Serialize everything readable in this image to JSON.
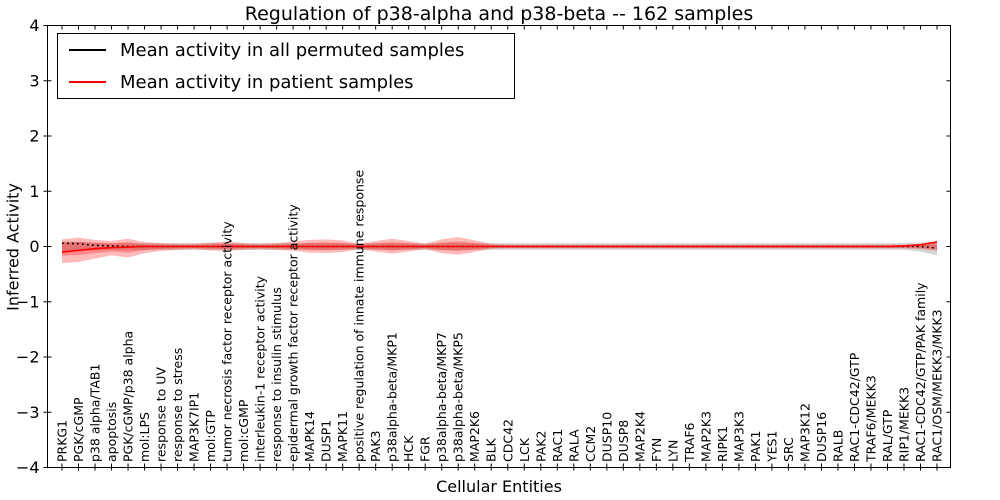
{
  "chart_data": {
    "type": "line",
    "title": "Regulation of p38-alpha and p38-beta -- 162 samples",
    "xlabel": "Cellular Entities",
    "ylabel": "Inferred Activity",
    "ylim": [
      -4,
      4
    ],
    "yticks": [
      -4,
      -3,
      -2,
      -1,
      0,
      1,
      2,
      3,
      4
    ],
    "grid": false,
    "legend_position": "upper left",
    "categories": [
      "PRKG1",
      "PGK/cGMP",
      "p38 alpha/TAB1",
      "apoptosis",
      "PGK/cGMP/p38 alpha",
      "mol:LPS",
      "response to UV",
      "response to stress",
      "MAP3K7IP1",
      "mol:GTP",
      "tumor necrosis factor receptor activity",
      "mol:cGMP",
      "interleukin-1 receptor activity",
      "response to insulin stimulus",
      "epidermal growth factor receptor activity",
      "MAPK14",
      "DUSP1",
      "MAPK11",
      "positive regulation of innate immune response",
      "PAK3",
      "p38alpha-beta/MKP1",
      "HCK",
      "FGR",
      "p38alpha-beta/MKP7",
      "p38alpha-beta/MKP5",
      "MAP2K6",
      "BLK",
      "CDC42",
      "LCK",
      "PAK2",
      "RAC1",
      "RALA",
      "CCM2",
      "DUSP10",
      "DUSP8",
      "MAP2K4",
      "FYN",
      "LYN",
      "TRAF6",
      "MAP2K3",
      "RIPK1",
      "MAP3K3",
      "PAK1",
      "YES1",
      "SRC",
      "MAP3K12",
      "DUSP16",
      "RALB",
      "RAC1-CDC42/GTP",
      "TRAF6/MEKK3",
      "RAL/GTP",
      "RIP1/MEKK3",
      "RAC1-CDC42/GTP/PAK family",
      "RAC1/OSM/MEKK3/MKK3"
    ],
    "series": [
      {
        "id": "mean-permuted",
        "name": "Mean activity in all permuted samples",
        "color": "#000000",
        "style": "dotted",
        "values": [
          0.06,
          0.05,
          0.02,
          0.01,
          0,
          0,
          0,
          0,
          0,
          0,
          0,
          0,
          0,
          0,
          0,
          0,
          0,
          0,
          0,
          0,
          0,
          0,
          0,
          0,
          0,
          0,
          0,
          0,
          0,
          0,
          0,
          0,
          0,
          0,
          0,
          0,
          0,
          0,
          0,
          0,
          0,
          0,
          0,
          0,
          0,
          0,
          0,
          0,
          0,
          0,
          0,
          0,
          0,
          -0.03
        ]
      },
      {
        "id": "mean-patient",
        "name": "Mean activity in patient samples",
        "color": "#ff0000",
        "style": "solid",
        "values": [
          -0.1,
          -0.07,
          -0.04,
          -0.02,
          -0.01,
          0,
          0,
          0,
          0,
          0,
          0,
          0,
          0,
          0,
          0,
          0,
          0,
          0,
          0,
          0,
          0,
          0,
          0,
          0,
          0,
          0,
          0,
          0,
          0,
          0,
          0,
          0,
          0,
          0,
          0,
          0,
          0,
          0,
          0,
          0,
          0,
          0,
          0,
          0,
          0,
          0,
          0,
          0,
          0,
          0,
          0,
          0.01,
          0.03,
          0.08
        ]
      }
    ],
    "bands": [
      {
        "id": "permuted-std-band",
        "color": "#bfbfbf",
        "opacity": 0.65,
        "inner_scale": 1,
        "upper": [
          0.09,
          0.08,
          0.07,
          0.06,
          0.06,
          0.06,
          0.06,
          0.06,
          0.06,
          0.06,
          0.06,
          0.06,
          0.06,
          0.06,
          0.06,
          0.06,
          0.06,
          0.06,
          0.06,
          0.06,
          0.06,
          0.06,
          0.06,
          0.06,
          0.06,
          0.06,
          0.06,
          0.06,
          0.06,
          0.06,
          0.06,
          0.06,
          0.06,
          0.06,
          0.06,
          0.06,
          0.06,
          0.06,
          0.06,
          0.06,
          0.06,
          0.06,
          0.06,
          0.06,
          0.06,
          0.06,
          0.06,
          0.06,
          0.06,
          0.06,
          0.06,
          0.06,
          0.07,
          0.1
        ],
        "lower": [
          -0.09,
          -0.08,
          -0.07,
          -0.06,
          -0.06,
          -0.06,
          -0.06,
          -0.06,
          -0.06,
          -0.06,
          -0.06,
          -0.06,
          -0.06,
          -0.06,
          -0.06,
          -0.06,
          -0.06,
          -0.06,
          -0.06,
          -0.06,
          -0.06,
          -0.06,
          -0.06,
          -0.06,
          -0.06,
          -0.06,
          -0.06,
          -0.06,
          -0.06,
          -0.06,
          -0.06,
          -0.06,
          -0.06,
          -0.06,
          -0.06,
          -0.06,
          -0.06,
          -0.06,
          -0.06,
          -0.06,
          -0.06,
          -0.06,
          -0.06,
          -0.06,
          -0.06,
          -0.06,
          -0.06,
          -0.06,
          -0.06,
          -0.06,
          -0.06,
          -0.06,
          -0.09,
          -0.16
        ]
      },
      {
        "id": "patient-std-band",
        "color": "#ff0000",
        "opacity": 0.27,
        "inner_scale": 0.55,
        "upper": [
          0.13,
          0.16,
          0.12,
          0.1,
          0.14,
          0.08,
          0.06,
          0.05,
          0.05,
          0.07,
          0.09,
          0.06,
          0.05,
          0.06,
          0.09,
          0.12,
          0.13,
          0.11,
          0.05,
          0.1,
          0.14,
          0.1,
          0.05,
          0.13,
          0.17,
          0.11,
          0.05,
          0.035,
          0.035,
          0.035,
          0.035,
          0.035,
          0.035,
          0.035,
          0.035,
          0.035,
          0.035,
          0.035,
          0.035,
          0.035,
          0.035,
          0.035,
          0.035,
          0.035,
          0.035,
          0.035,
          0.035,
          0.035,
          0.035,
          0.035,
          0.035,
          0.035,
          0.04,
          0.07
        ],
        "lower": [
          -0.3,
          -0.28,
          -0.22,
          -0.16,
          -0.2,
          -0.12,
          -0.08,
          -0.06,
          -0.05,
          -0.07,
          -0.08,
          -0.06,
          -0.05,
          -0.06,
          -0.08,
          -0.11,
          -0.12,
          -0.1,
          -0.05,
          -0.09,
          -0.13,
          -0.09,
          -0.05,
          -0.12,
          -0.15,
          -0.1,
          -0.04,
          -0.035,
          -0.035,
          -0.035,
          -0.035,
          -0.035,
          -0.035,
          -0.035,
          -0.035,
          -0.035,
          -0.035,
          -0.035,
          -0.035,
          -0.035,
          -0.035,
          -0.035,
          -0.035,
          -0.035,
          -0.035,
          -0.035,
          -0.035,
          -0.035,
          -0.035,
          -0.035,
          -0.035,
          -0.035,
          -0.05,
          -0.08
        ]
      }
    ]
  }
}
